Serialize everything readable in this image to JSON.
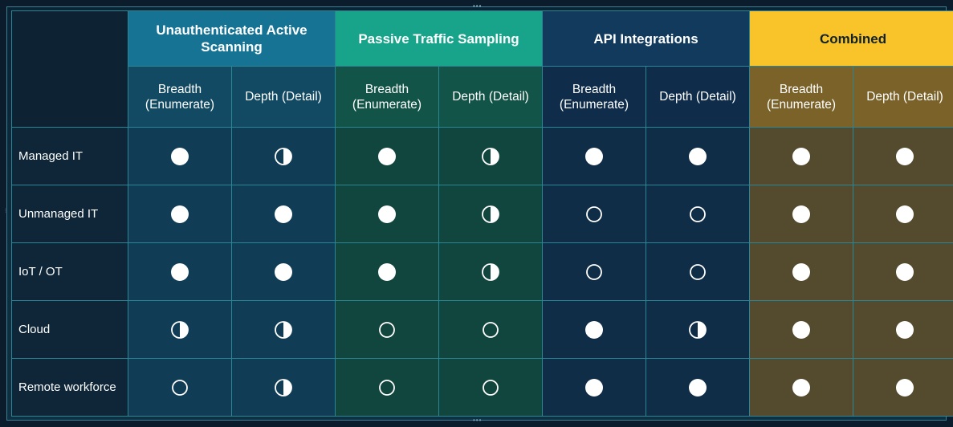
{
  "table": {
    "groups": [
      {
        "title": "Unauthenticated Active Scanning"
      },
      {
        "title": "Passive Traffic Sampling"
      },
      {
        "title": "API Integrations"
      },
      {
        "title": "Combined"
      }
    ],
    "subheaders": {
      "breadth": "Breadth (Enumerate)",
      "depth": "Depth (Detail)"
    },
    "rows": [
      {
        "label": "Managed IT",
        "cells": [
          "full",
          "half",
          "full",
          "half",
          "full",
          "full",
          "full",
          "full"
        ]
      },
      {
        "label": "Unmanaged IT",
        "cells": [
          "full",
          "full",
          "full",
          "half",
          "empty",
          "empty",
          "full",
          "full"
        ]
      },
      {
        "label": "IoT / OT",
        "cells": [
          "full",
          "full",
          "full",
          "half",
          "empty",
          "empty",
          "full",
          "full"
        ]
      },
      {
        "label": "Cloud",
        "cells": [
          "half",
          "half",
          "empty",
          "empty",
          "full",
          "half",
          "full",
          "full"
        ]
      },
      {
        "label": "Remote workforce",
        "cells": [
          "empty",
          "half",
          "empty",
          "empty",
          "full",
          "full",
          "full",
          "full"
        ]
      }
    ]
  },
  "colors": {
    "uas_header": "#177394",
    "pts_header": "#18a38b",
    "api_header": "#123a5c",
    "combined_header": "#f8c42a",
    "grid_line": "#2a8694"
  }
}
